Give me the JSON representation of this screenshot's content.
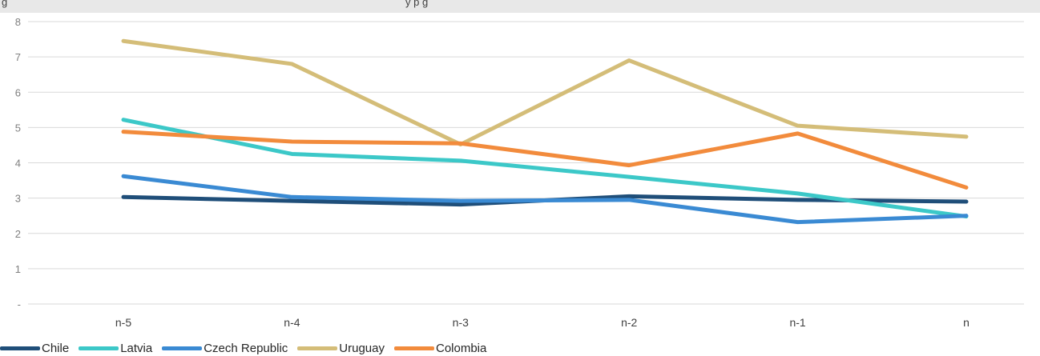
{
  "header": {
    "left_text": "g",
    "center_text": "y    p         g"
  },
  "chart_data": {
    "type": "line",
    "categories": [
      "n-5",
      "n-4",
      "n-3",
      "n-2",
      "n-1",
      "n"
    ],
    "ylim": [
      0,
      8
    ],
    "y_ticks": [
      "-",
      "1",
      "2",
      "3",
      "4",
      "5",
      "6",
      "7",
      "8"
    ],
    "grid": true,
    "legend_position": "bottom-left",
    "series": [
      {
        "name": "Chile",
        "color": "#1f4e79",
        "values": [
          3.03,
          2.92,
          2.82,
          3.05,
          2.95,
          2.9
        ]
      },
      {
        "name": "Latvia",
        "color": "#3cc8c8",
        "values": [
          5.22,
          4.25,
          4.06,
          3.6,
          3.13,
          2.48
        ]
      },
      {
        "name": "Czech Republic",
        "color": "#3a8ad3",
        "values": [
          3.62,
          3.03,
          2.92,
          2.95,
          2.32,
          2.5
        ]
      },
      {
        "name": "Uruguay",
        "color": "#d4bd78",
        "values": [
          7.45,
          6.8,
          4.52,
          6.9,
          5.05,
          4.74
        ]
      },
      {
        "name": "Colombia",
        "color": "#f28b3c",
        "values": [
          4.88,
          4.6,
          4.55,
          3.93,
          4.83,
          3.3
        ]
      }
    ]
  }
}
